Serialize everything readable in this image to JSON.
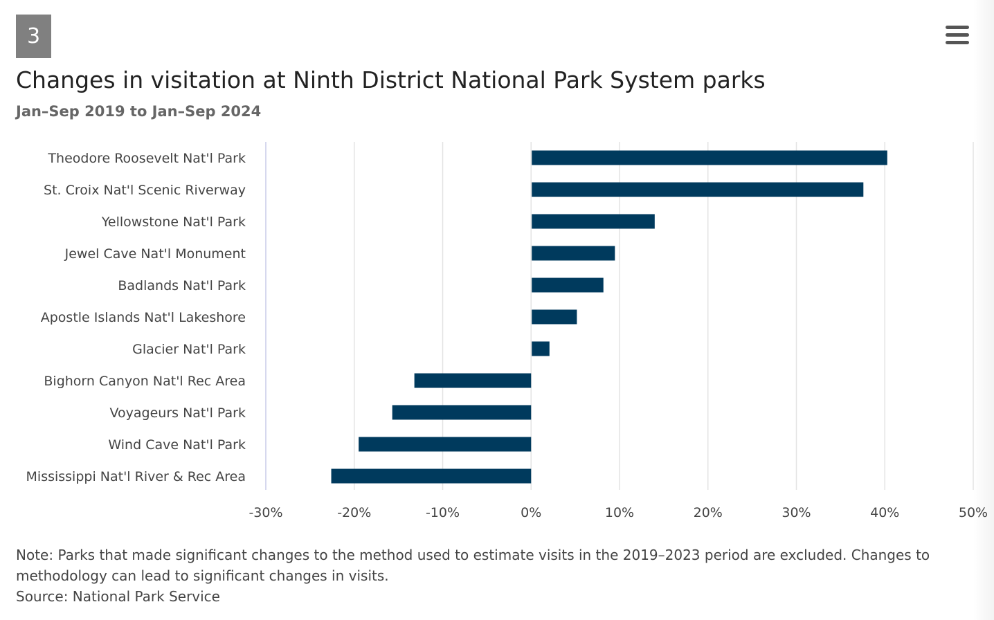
{
  "badge": "3",
  "menu": {
    "icon": "hamburger-menu-icon"
  },
  "colors": {
    "bar": "#003a5d",
    "grid": "#e3e3e3",
    "axis": "#c8cbe8"
  },
  "chart_data": {
    "type": "bar",
    "orientation": "horizontal",
    "title": "Changes in visitation at Ninth District National Park System parks",
    "subtitle": "Jan–Sep 2019 to Jan–Sep 2024",
    "categories": [
      "Theodore Roosevelt Nat'l Park",
      "St. Croix Nat'l Scenic Riverway",
      "Yellowstone Nat'l Park",
      "Jewel Cave Nat'l Monument",
      "Badlands Nat'l Park",
      "Apostle Islands Nat'l Lakeshore",
      "Glacier Nat'l Park",
      "Bighorn Canyon Nat'l Rec Area",
      "Voyageurs Nat'l Park",
      "Wind Cave Nat'l Park",
      "Mississippi Nat'l River & Rec Area"
    ],
    "values": [
      40.2,
      37.5,
      13.9,
      9.4,
      8.1,
      5.1,
      2.0,
      -13.2,
      -15.7,
      -19.5,
      -22.6
    ],
    "xlim": [
      -30,
      50
    ],
    "xticks": [
      -30,
      -20,
      -10,
      0,
      10,
      20,
      30,
      40,
      50
    ],
    "xtick_labels": [
      "-30%",
      "-20%",
      "-10%",
      "0%",
      "10%",
      "20%",
      "30%",
      "40%",
      "50%"
    ],
    "grid": true,
    "legend": "none"
  },
  "footer": {
    "note": "Note: Parks that made significant changes to the method used to estimate visits in the 2019–2023 period are excluded. Changes to methodology can lead to significant changes in visits.",
    "source": "Source: National Park Service"
  }
}
